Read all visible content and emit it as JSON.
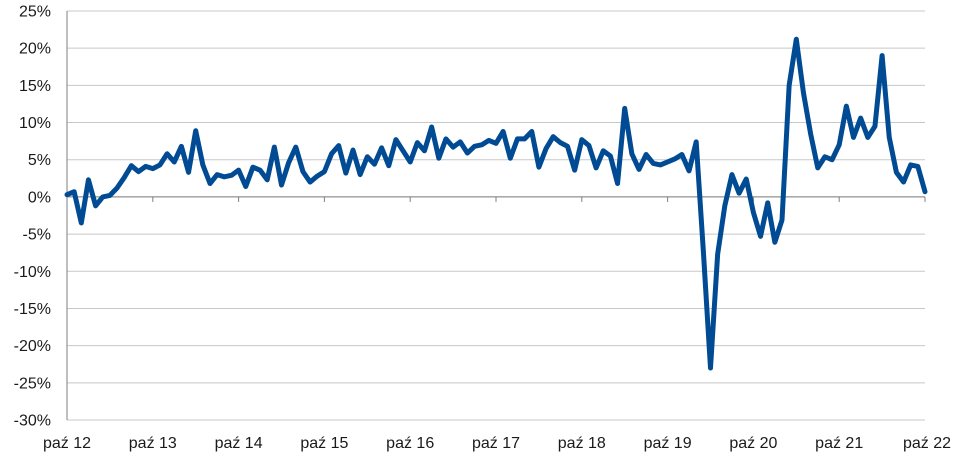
{
  "chart_data": {
    "type": "line",
    "title": "",
    "xlabel": "",
    "ylabel": "",
    "ylim": [
      -30,
      25
    ],
    "yticks": [
      25,
      20,
      15,
      10,
      5,
      0,
      -5,
      -10,
      -15,
      -20,
      -25,
      -30
    ],
    "ytick_labels": [
      "25%",
      "20%",
      "15%",
      "10%",
      "5%",
      "0%",
      "-5%",
      "-10%",
      "-15%",
      "-20%",
      "-25%",
      "-30%"
    ],
    "xticks": [
      "paź 12",
      "paź 13",
      "paź 14",
      "paź 15",
      "paź 16",
      "paź 17",
      "paź 18",
      "paź 19",
      "paź 20",
      "paź 21",
      "paź 22"
    ],
    "grid": true,
    "colors": {
      "series": "#004b93",
      "grid": "#c8c8c8",
      "axis": "#7f7f7f"
    },
    "series": [
      {
        "values": [
          0.3,
          0.7,
          -3.5,
          2.3,
          -1.2,
          0.0,
          0.2,
          1.2,
          2.6,
          4.2,
          3.4,
          4.1,
          3.8,
          4.3,
          5.8,
          4.7,
          6.8,
          3.3,
          8.9,
          4.3,
          1.8,
          3.0,
          2.7,
          2.9,
          3.6,
          1.4,
          4.0,
          3.6,
          2.3,
          6.7,
          1.6,
          4.6,
          6.7,
          3.4,
          2.0,
          2.8,
          3.4,
          5.8,
          6.9,
          3.2,
          6.3,
          3.0,
          5.4,
          4.4,
          6.6,
          4.2,
          7.7,
          6.2,
          4.7,
          7.3,
          6.2,
          9.4,
          5.2,
          7.8,
          6.7,
          7.4,
          5.9,
          6.8,
          7.0,
          7.6,
          7.2,
          8.8,
          5.2,
          7.8,
          7.8,
          8.8,
          4.0,
          6.5,
          8.1,
          7.3,
          6.8,
          3.6,
          7.7,
          6.9,
          3.9,
          6.2,
          5.5,
          1.8,
          11.9,
          5.8,
          3.7,
          5.7,
          4.5,
          4.3,
          4.7,
          5.1,
          5.7,
          3.5,
          7.4,
          -7.3,
          -23.0,
          -7.7,
          -1.2,
          3.0,
          0.5,
          2.4,
          -2.1,
          -5.3,
          -0.8,
          -6.1,
          -3.1,
          15.0,
          21.2,
          14.0,
          8.5,
          3.9,
          5.4,
          5.0,
          7.0,
          12.2,
          8.0,
          10.6,
          8.0,
          9.5,
          19.0,
          8.0,
          3.3,
          2.0,
          4.3,
          4.1,
          0.7
        ]
      }
    ]
  }
}
